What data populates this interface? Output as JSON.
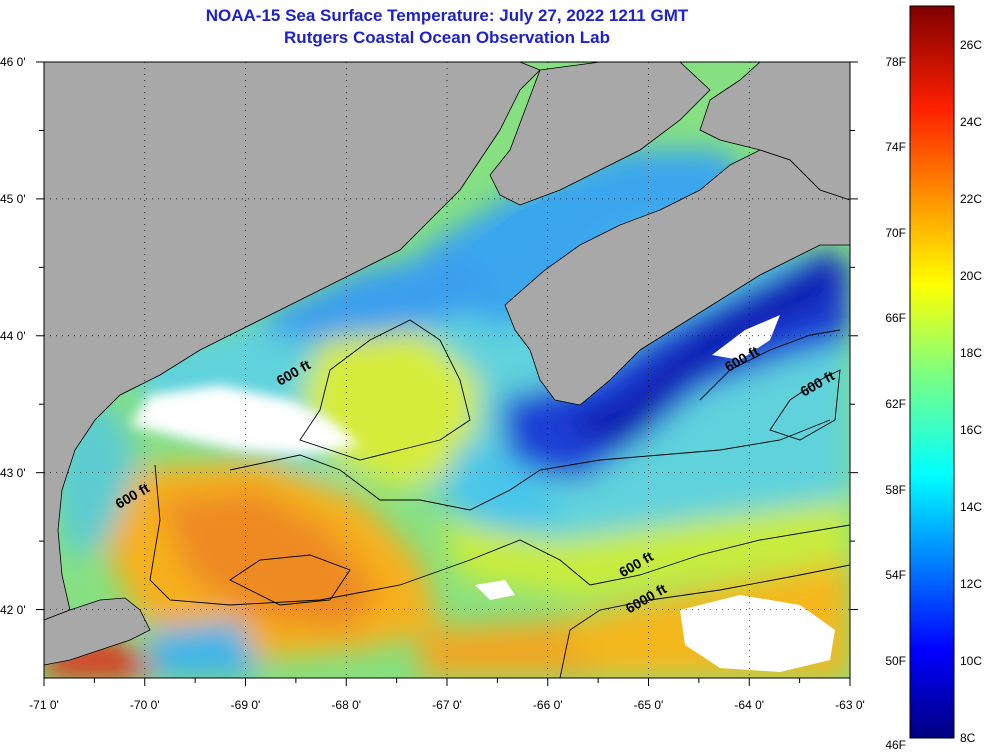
{
  "header": {
    "title": "NOAA-15 Sea Surface Temperature:  July 27, 2022 1211 GMT",
    "subtitle": "Rutgers Coastal Ocean Observation Lab"
  },
  "map": {
    "lat_ticks": [
      "46 0'",
      "45 0'",
      "44 0'",
      "43 0'",
      "42 0'"
    ],
    "lon_ticks": [
      "-71 0'",
      "-70 0'",
      "-69 0'",
      "-68 0'",
      "-67 0'",
      "-66 0'",
      "-65 0'",
      "-64 0'",
      "-63 0'"
    ],
    "lat_range": [
      41.5,
      46.0
    ],
    "lon_range": [
      -71.0,
      -63.0
    ],
    "contour_labels": [
      {
        "text": "600 ft",
        "lon": -68.5,
        "lat": 43.7
      },
      {
        "text": "600 ft",
        "lon": -70.1,
        "lat": 42.8
      },
      {
        "text": "600 ft",
        "lon": -64.05,
        "lat": 43.8
      },
      {
        "text": "600 ft",
        "lon": -63.3,
        "lat": 43.62
      },
      {
        "text": "600 ft",
        "lon": -65.1,
        "lat": 42.3
      },
      {
        "text": "6000 ft",
        "lon": -65.0,
        "lat": 42.05
      }
    ],
    "colors": {
      "land": "#a8a8a8",
      "cold": "#1a3fd6",
      "cool": "#3aa6ee",
      "mild": "#56dcd2",
      "temperate": "#c8ec3c",
      "warm": "#f6c018",
      "hot": "#f08820",
      "veryhot": "#e42a18",
      "cloud": "#ffffff"
    }
  },
  "colorbar": {
    "fahrenheit_ticks": [
      "78F",
      "74F",
      "70F",
      "66F",
      "62F",
      "58F",
      "54F",
      "50F",
      "46F"
    ],
    "celsius_ticks": [
      "26C",
      "24C",
      "22C",
      "20C",
      "18C",
      "16C",
      "14C",
      "12C",
      "10C",
      "8C"
    ],
    "range_c": [
      8,
      27
    ]
  }
}
